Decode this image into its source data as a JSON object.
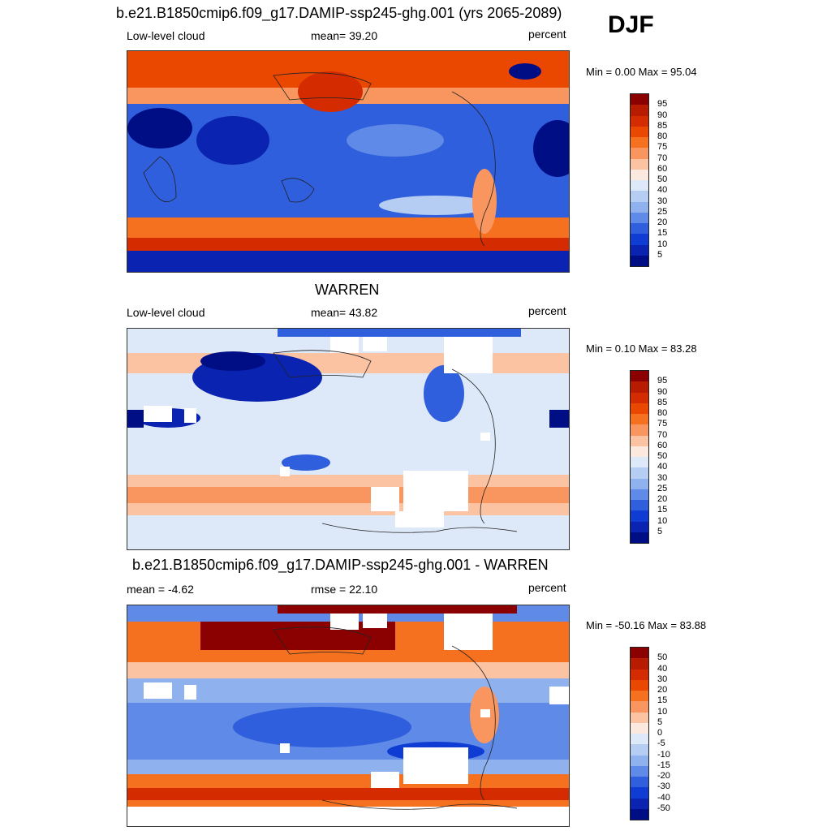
{
  "season": "DJF",
  "panels": [
    {
      "title": "b.e21.B1850cmip6.f09_g17.DAMIP-ssp245-ghg.001 (yrs 2065-2089)",
      "left": "Low-level cloud",
      "center": "mean=  39.20",
      "right": "percent",
      "minmax": "Min =   0.00 Max =  95.04",
      "colorbar": {
        "labels": [
          "95",
          "90",
          "85",
          "80",
          "75",
          "70",
          "60",
          "50",
          "40",
          "30",
          "25",
          "20",
          "15",
          "10",
          "5"
        ],
        "colors": [
          "#8b0000",
          "#b71c00",
          "#d42b00",
          "#ea4700",
          "#f5701f",
          "#f99660",
          "#fcc3a3",
          "#fbe9df",
          "#dde9f8",
          "#b5cdf2",
          "#8fb1ee",
          "#5f8ae7",
          "#2f5fdc",
          "#0f3cd2",
          "#0a23b0",
          "#000e85"
        ]
      }
    },
    {
      "title": "WARREN",
      "left": "Low-level cloud",
      "center": "mean=  43.82",
      "right": "percent",
      "minmax": "Min =   0.10 Max =  83.28",
      "colorbar": {
        "labels": [
          "95",
          "90",
          "85",
          "80",
          "75",
          "70",
          "60",
          "50",
          "40",
          "30",
          "25",
          "20",
          "15",
          "10",
          "5"
        ],
        "colors": [
          "#8b0000",
          "#b71c00",
          "#d42b00",
          "#ea4700",
          "#f5701f",
          "#f99660",
          "#fcc3a3",
          "#fbe9df",
          "#dde9f8",
          "#b5cdf2",
          "#8fb1ee",
          "#5f8ae7",
          "#2f5fdc",
          "#0f3cd2",
          "#0a23b0",
          "#000e85"
        ]
      }
    },
    {
      "title": "b.e21.B1850cmip6.f09_g17.DAMIP-ssp245-ghg.001 - WARREN",
      "left": "mean =  -4.62",
      "center": "rmse =  22.10",
      "right": "percent",
      "minmax": "Min = -50.16 Max =  83.88",
      "colorbar": {
        "labels": [
          "50",
          "40",
          "30",
          "20",
          "15",
          "10",
          "5",
          "0",
          "-5",
          "-10",
          "-15",
          "-20",
          "-30",
          "-40",
          "-50"
        ],
        "colors": [
          "#8b0000",
          "#b71c00",
          "#d42b00",
          "#ea4700",
          "#f5701f",
          "#f99660",
          "#fcc3a3",
          "#fbe9df",
          "#dde9f8",
          "#b5cdf2",
          "#8fb1ee",
          "#5f8ae7",
          "#2f5fdc",
          "#0f3cd2",
          "#0a23b0",
          "#000e85"
        ]
      }
    }
  ]
}
